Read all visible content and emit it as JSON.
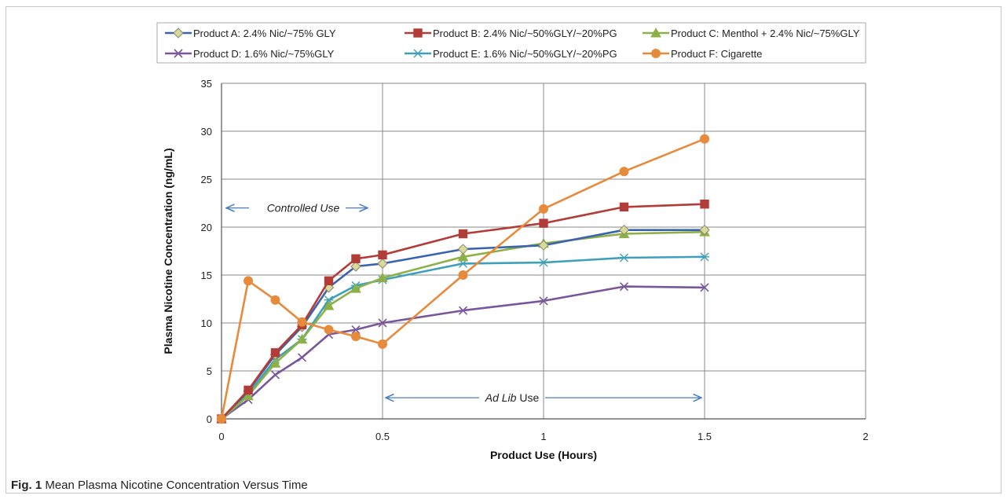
{
  "caption": {
    "label": "Fig. 1",
    "text": "Mean Plasma Nicotine Concentration Versus Time"
  },
  "chart_data": {
    "type": "line",
    "title": "",
    "xlabel": "Product Use (Hours)",
    "ylabel": "Plasma Nicotine Concentration (ng/mL)",
    "xlim": [
      0,
      2
    ],
    "ylim": [
      0,
      35
    ],
    "x_ticks": [
      "0",
      "0.5",
      "1",
      "1.5",
      "2"
    ],
    "y_ticks": [
      "0",
      "5",
      "10",
      "15",
      "20",
      "25",
      "30",
      "35"
    ],
    "grid": "vertical-and-horizontal",
    "legend_position": "top",
    "series": [
      {
        "name": "Product A: 2.4% Nic/~75% GLY",
        "color": "#3a64ad",
        "marker": "diamond",
        "x": [
          0,
          0.083,
          0.167,
          0.25,
          0.333,
          0.417,
          0.5,
          0.75,
          1,
          1.25,
          1.5
        ],
        "y": [
          0,
          2.9,
          6.7,
          9.6,
          13.7,
          15.9,
          16.2,
          17.7,
          18.1,
          19.7,
          19.7
        ]
      },
      {
        "name": "Product B: 2.4% Nic/~50%GLY/~20%PG",
        "color": "#b23c38",
        "marker": "square",
        "x": [
          0,
          0.083,
          0.167,
          0.25,
          0.333,
          0.417,
          0.5,
          0.75,
          1,
          1.25,
          1.5
        ],
        "y": [
          0,
          3.0,
          6.9,
          9.8,
          14.4,
          16.7,
          17.1,
          19.3,
          20.4,
          22.1,
          22.4
        ]
      },
      {
        "name": "Product C: Menthol + 2.4% Nic/~75%GLY",
        "color": "#8db049",
        "marker": "triangle",
        "x": [
          0,
          0.083,
          0.167,
          0.25,
          0.333,
          0.417,
          0.5,
          0.75,
          1,
          1.25,
          1.5
        ],
        "y": [
          0,
          2.4,
          5.8,
          8.3,
          11.8,
          13.6,
          14.7,
          16.9,
          18.3,
          19.3,
          19.5
        ]
      },
      {
        "name": "Product D: 1.6% Nic/~75%GLY",
        "color": "#7a569a",
        "marker": "x",
        "x": [
          0,
          0.083,
          0.167,
          0.25,
          0.333,
          0.417,
          0.5,
          0.75,
          1,
          1.25,
          1.5
        ],
        "y": [
          0,
          2.0,
          4.6,
          6.4,
          8.8,
          9.3,
          10.0,
          11.3,
          12.3,
          13.8,
          13.7
        ]
      },
      {
        "name": "Product E: 1.6% Nic/~50%GLY/~20%PG",
        "color": "#3fa0b8",
        "marker": "star",
        "x": [
          0,
          0.083,
          0.167,
          0.25,
          0.333,
          0.417,
          0.5,
          0.75,
          1,
          1.25,
          1.5
        ],
        "y": [
          0,
          2.6,
          6.2,
          8.3,
          12.4,
          13.9,
          14.5,
          16.2,
          16.3,
          16.8,
          16.9
        ]
      },
      {
        "name": "Product F: Cigarette",
        "color": "#e68a3c",
        "marker": "circle",
        "x": [
          0,
          0.083,
          0.167,
          0.25,
          0.333,
          0.417,
          0.5,
          0.75,
          1,
          1.25,
          1.5
        ],
        "y": [
          0,
          14.4,
          12.4,
          10.1,
          9.3,
          8.6,
          7.8,
          15.0,
          21.9,
          25.8,
          29.2
        ]
      }
    ],
    "annotations": [
      {
        "text": "Controlled Use",
        "italic": true,
        "arrow": "both",
        "y": 22.0,
        "x_from": 0,
        "x_to": 0.45
      },
      {
        "text_italic": "Ad Lib",
        "text": " Use",
        "arrow": "double",
        "y": 2.2,
        "x_from": 0.5,
        "x_to": 1.5
      }
    ]
  }
}
